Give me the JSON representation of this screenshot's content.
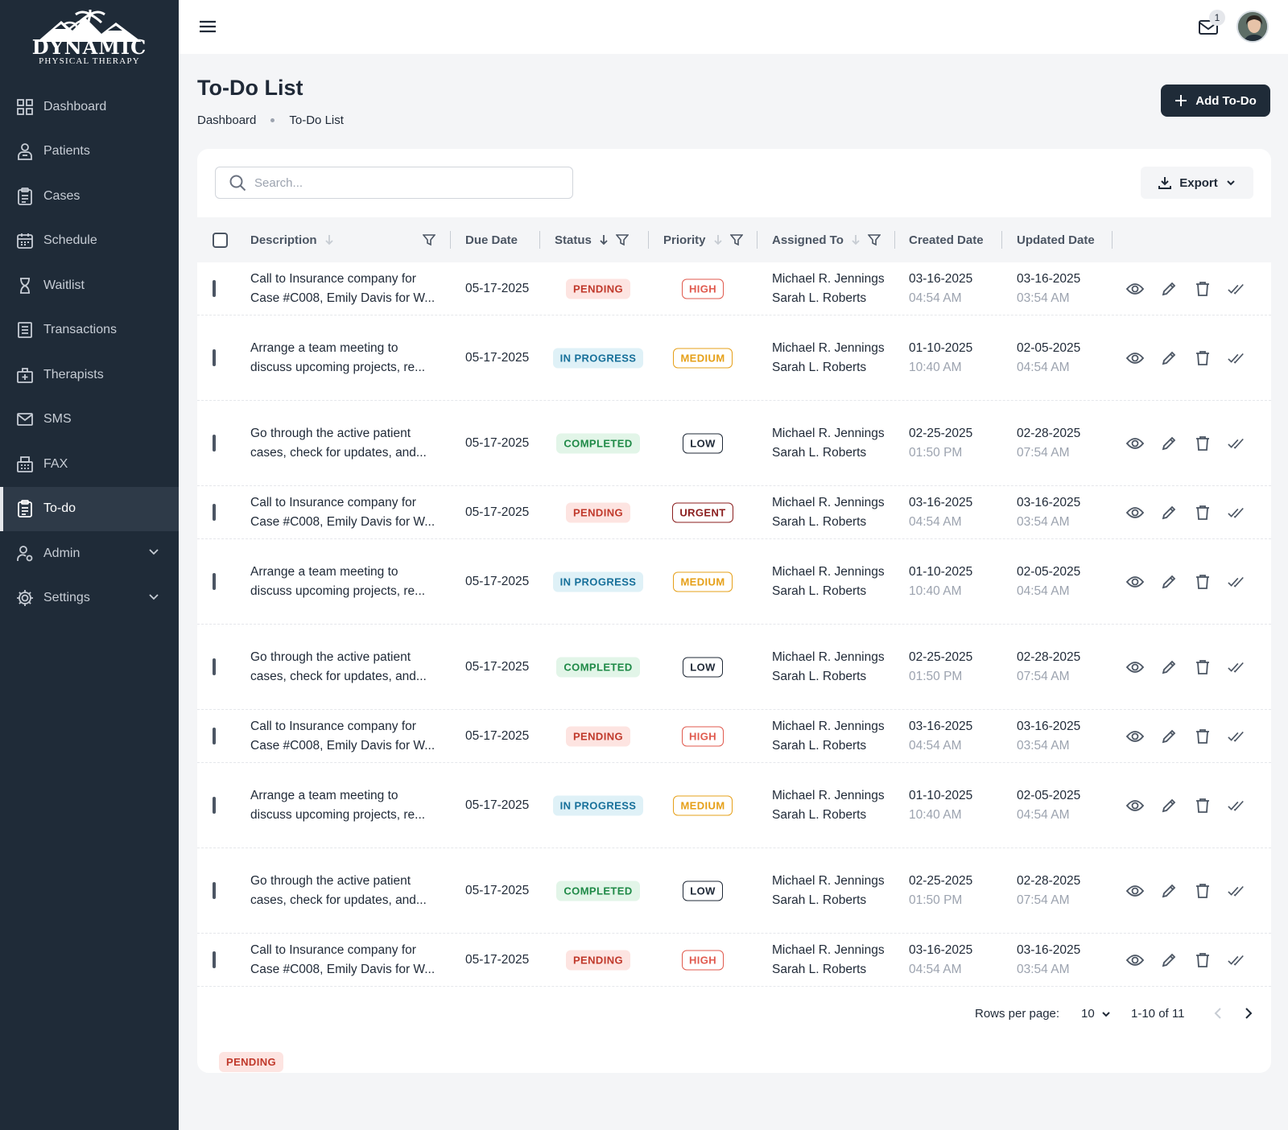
{
  "brand": {
    "name": "DYNAMIC",
    "subtitle": "PHYSICAL  THERAPY"
  },
  "sidebar": {
    "items": [
      {
        "label": "Dashboard",
        "icon": "dashboard-grid-icon"
      },
      {
        "label": "Patients",
        "icon": "patients-icon"
      },
      {
        "label": "Cases",
        "icon": "cases-clipboard-icon"
      },
      {
        "label": "Schedule",
        "icon": "calendar-icon"
      },
      {
        "label": "Waitlist",
        "icon": "hourglass-icon"
      },
      {
        "label": "Transactions",
        "icon": "receipt-icon"
      },
      {
        "label": "Therapists",
        "icon": "medical-bag-icon"
      },
      {
        "label": "SMS",
        "icon": "mail-icon"
      },
      {
        "label": "FAX",
        "icon": "fax-icon"
      },
      {
        "label": "To-do",
        "icon": "todo-clipboard-icon",
        "active": true
      },
      {
        "label": "Admin",
        "icon": "admin-user-gear-icon",
        "expandable": true
      },
      {
        "label": "Settings",
        "icon": "gear-icon",
        "expandable": true
      }
    ]
  },
  "topbar": {
    "mail_count": "1"
  },
  "page": {
    "title": "To-Do List",
    "breadcrumb": [
      "Dashboard",
      "To-Do List"
    ],
    "add_button": "Add To-Do"
  },
  "toolbar": {
    "search_placeholder": "Search...",
    "export_label": "Export"
  },
  "table": {
    "columns": {
      "description": "Description",
      "due_date": "Due Date",
      "status": "Status",
      "priority": "Priority",
      "assigned_to": "Assigned To",
      "created_date": "Created Date",
      "updated_date": "Updated Date"
    },
    "rows": [
      {
        "desc1": "Call to Insurance company for",
        "desc2": "Case #C008, Emily Davis for W...",
        "due": "05-17-2025",
        "status": "PENDING",
        "status_kind": "pending",
        "priority": "HIGH",
        "priority_kind": "high",
        "assignee1": "Michael R. Jennings",
        "assignee2": "Sarah L. Roberts",
        "created_date": "03-16-2025",
        "created_time": "04:54 AM",
        "updated_date": "03-16-2025",
        "updated_time": "03:54 AM"
      },
      {
        "desc1": "Arrange a team meeting to",
        "desc2": "discuss upcoming projects, re...",
        "due": "05-17-2025",
        "status": "IN PROGRESS",
        "status_kind": "progress",
        "priority": "MEDIUM",
        "priority_kind": "medium",
        "assignee1": "Michael R. Jennings",
        "assignee2": "Sarah L. Roberts",
        "created_date": "01-10-2025",
        "created_time": "10:40 AM",
        "updated_date": "02-05-2025",
        "updated_time": "04:54 AM"
      },
      {
        "desc1": "Go through the active patient",
        "desc2": "cases, check for updates, and...",
        "due": "05-17-2025",
        "status": "COMPLETED",
        "status_kind": "completed",
        "priority": "LOW",
        "priority_kind": "low",
        "assignee1": "Michael R. Jennings",
        "assignee2": "Sarah L. Roberts",
        "created_date": "02-25-2025",
        "created_time": "01:50 PM",
        "updated_date": "02-28-2025",
        "updated_time": "07:54 AM"
      },
      {
        "desc1": "Call to Insurance company for",
        "desc2": "Case #C008, Emily Davis for W...",
        "due": "05-17-2025",
        "status": "PENDING",
        "status_kind": "pending",
        "priority": "URGENT",
        "priority_kind": "urgent",
        "assignee1": "Michael R. Jennings",
        "assignee2": "Sarah L. Roberts",
        "created_date": "03-16-2025",
        "created_time": "04:54 AM",
        "updated_date": "03-16-2025",
        "updated_time": "03:54 AM"
      },
      {
        "desc1": "Arrange a team meeting to",
        "desc2": "discuss upcoming projects, re...",
        "due": "05-17-2025",
        "status": "IN PROGRESS",
        "status_kind": "progress",
        "priority": "MEDIUM",
        "priority_kind": "medium",
        "assignee1": "Michael R. Jennings",
        "assignee2": "Sarah L. Roberts",
        "created_date": "01-10-2025",
        "created_time": "10:40 AM",
        "updated_date": "02-05-2025",
        "updated_time": "04:54 AM"
      },
      {
        "desc1": "Go through the active patient",
        "desc2": "cases, check for updates, and...",
        "due": "05-17-2025",
        "status": "COMPLETED",
        "status_kind": "completed",
        "priority": "LOW",
        "priority_kind": "low",
        "assignee1": "Michael R. Jennings",
        "assignee2": "Sarah L. Roberts",
        "created_date": "02-25-2025",
        "created_time": "01:50 PM",
        "updated_date": "02-28-2025",
        "updated_time": "07:54 AM"
      },
      {
        "desc1": "Call to Insurance company for",
        "desc2": "Case #C008, Emily Davis for W...",
        "due": "05-17-2025",
        "status": "PENDING",
        "status_kind": "pending",
        "priority": "HIGH",
        "priority_kind": "high",
        "assignee1": "Michael R. Jennings",
        "assignee2": "Sarah L. Roberts",
        "created_date": "03-16-2025",
        "created_time": "04:54 AM",
        "updated_date": "03-16-2025",
        "updated_time": "03:54 AM"
      },
      {
        "desc1": "Arrange a team meeting to",
        "desc2": "discuss upcoming projects, re...",
        "due": "05-17-2025",
        "status": "IN PROGRESS",
        "status_kind": "progress",
        "priority": "MEDIUM",
        "priority_kind": "medium",
        "assignee1": "Michael R. Jennings",
        "assignee2": "Sarah L. Roberts",
        "created_date": "01-10-2025",
        "created_time": "10:40 AM",
        "updated_date": "02-05-2025",
        "updated_time": "04:54 AM"
      },
      {
        "desc1": "Go through the active patient",
        "desc2": "cases, check for updates, and...",
        "due": "05-17-2025",
        "status": "COMPLETED",
        "status_kind": "completed",
        "priority": "LOW",
        "priority_kind": "low",
        "assignee1": "Michael R. Jennings",
        "assignee2": "Sarah L. Roberts",
        "created_date": "02-25-2025",
        "created_time": "01:50 PM",
        "updated_date": "02-28-2025",
        "updated_time": "07:54 AM"
      },
      {
        "desc1": "Call to Insurance company for",
        "desc2": "Case #C008, Emily Davis for W...",
        "due": "05-17-2025",
        "status": "PENDING",
        "status_kind": "pending",
        "priority": "HIGH",
        "priority_kind": "high",
        "assignee1": "Michael R. Jennings",
        "assignee2": "Sarah L. Roberts",
        "created_date": "03-16-2025",
        "created_time": "04:54 AM",
        "updated_date": "03-16-2025",
        "updated_time": "03:54 AM"
      }
    ]
  },
  "pagination": {
    "rows_per_page_label": "Rows per page:",
    "rows_per_page": "10",
    "range": "1-10 of 11"
  },
  "floating_badge": "PENDING",
  "colors": {
    "sidebar_bg": "#1f2b38",
    "primary_button": "#1f2b38",
    "page_bg": "#f4f5f7"
  }
}
